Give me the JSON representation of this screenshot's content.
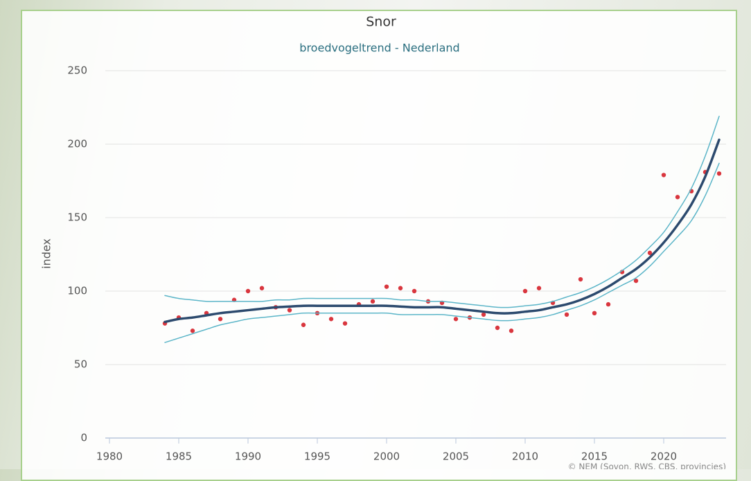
{
  "chart_data": {
    "type": "line",
    "title": "Snor",
    "subtitle": "broedvogeltrend - Nederland",
    "y_label": "index",
    "credit": "© NEM (Sovon, RWS, CBS, provincies)",
    "x": [
      1984,
      1985,
      1986,
      1987,
      1988,
      1989,
      1990,
      1991,
      1992,
      1993,
      1994,
      1995,
      1996,
      1997,
      1998,
      1999,
      2000,
      2001,
      2002,
      2003,
      2004,
      2005,
      2006,
      2007,
      2008,
      2009,
      2010,
      2011,
      2012,
      2013,
      2014,
      2015,
      2016,
      2017,
      2018,
      2019,
      2020,
      2021,
      2022,
      2023,
      2024
    ],
    "series": [
      {
        "style": "scatter",
        "color": "#d9363e",
        "values": [
          78,
          82,
          73,
          85,
          81,
          94,
          100,
          102,
          89,
          87,
          77,
          85,
          81,
          78,
          91,
          93,
          103,
          102,
          100,
          93,
          92,
          81,
          82,
          84,
          75,
          73,
          100,
          102,
          92,
          84,
          108,
          85,
          91,
          113,
          107,
          126,
          179,
          164,
          168,
          181,
          180
        ]
      },
      {
        "style": "band",
        "color": "#5bb5c8",
        "values": [
          97,
          95,
          94,
          93,
          93,
          93,
          93,
          93,
          94,
          94,
          95,
          95,
          95,
          95,
          95,
          95,
          95,
          94,
          94,
          93,
          93,
          92,
          91,
          90,
          89,
          89,
          90,
          91,
          93,
          96,
          99,
          103,
          108,
          114,
          121,
          130,
          140,
          154,
          170,
          192,
          219
        ]
      },
      {
        "style": "band",
        "color": "#5bb5c8",
        "values": [
          65,
          68,
          71,
          74,
          77,
          79,
          81,
          82,
          83,
          84,
          85,
          85,
          85,
          85,
          85,
          85,
          85,
          84,
          84,
          84,
          84,
          83,
          82,
          81,
          80,
          80,
          81,
          82,
          84,
          87,
          90,
          94,
          99,
          104,
          109,
          117,
          127,
          137,
          148,
          165,
          187
        ]
      },
      {
        "style": "trend",
        "color": "#2c4a6e",
        "values": [
          79,
          81,
          82,
          83.5,
          85,
          86,
          87,
          88,
          89,
          89.5,
          90,
          90,
          90,
          90,
          90,
          90,
          90,
          89.5,
          89,
          89,
          89,
          88,
          87,
          86,
          85,
          85,
          86,
          87,
          89,
          91,
          94,
          98,
          103,
          109,
          115,
          123,
          133,
          145,
          159,
          178,
          203
        ]
      }
    ],
    "xlim": [
      1979.7,
      2024.5
    ],
    "xticks": [
      1980,
      1985,
      1990,
      1995,
      2000,
      2005,
      2010,
      2015,
      2020
    ],
    "ylim": [
      0,
      250
    ],
    "yticks": [
      0,
      50,
      100,
      150,
      200,
      250
    ],
    "grid": true
  }
}
